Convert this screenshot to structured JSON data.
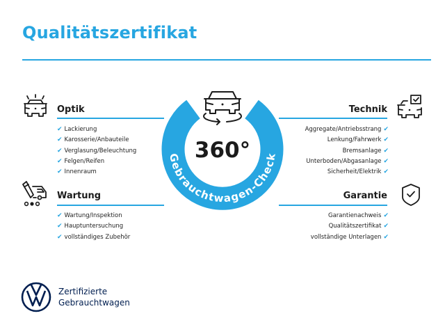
{
  "title": "Qualitätszertifikat",
  "colors": {
    "accent": "#27a6e1",
    "brand": "#001e50",
    "text": "#1b1b1b"
  },
  "center": {
    "value": "360°",
    "ring_label": "Gebrauchtwagen-Check",
    "icon": "car-rotate-icon"
  },
  "sections": {
    "optik": {
      "title": "Optik",
      "icon": "car-lights-icon",
      "items": [
        "Lackierung",
        "Karosserie/Anbauteile",
        "Verglasung/Beleuchtung",
        "Felgen/Reifen",
        "Innenraum"
      ]
    },
    "wartung": {
      "title": "Wartung",
      "icon": "car-service-icon",
      "items": [
        "Wartung/Inspektion",
        "Hauptuntersuchung",
        "vollständiges Zubehör"
      ]
    },
    "technik": {
      "title": "Technik",
      "icon": "car-checklist-icon",
      "items": [
        "Aggregate/Antriebsstrang",
        "Lenkung/Fahrwerk",
        "Bremsanlage",
        "Unterboden/Abgasanlage",
        "Sicherheit/Elektrik"
      ]
    },
    "garantie": {
      "title": "Garantie",
      "icon": "shield-check-icon",
      "items": [
        "Garantienachweis",
        "Qualitätszertifikat",
        "vollständige Unterlagen"
      ]
    }
  },
  "check_mark": "✔",
  "footer": {
    "line1": "Zertifizierte",
    "line2": "Gebrauchtwagen",
    "logo": "vw-logo"
  }
}
